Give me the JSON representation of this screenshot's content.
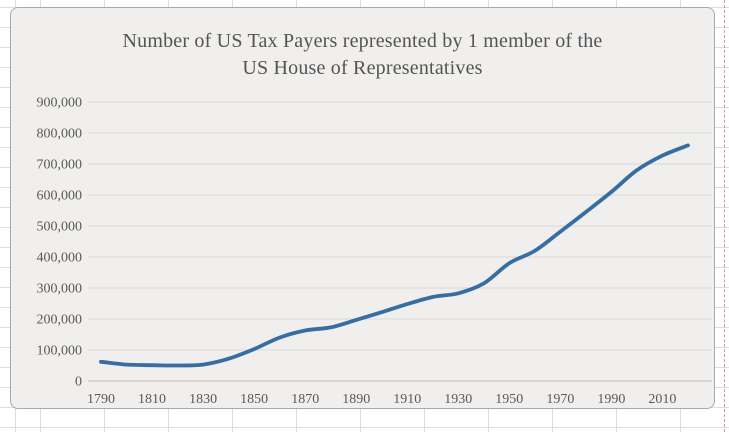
{
  "chart_data": {
    "type": "line",
    "title": "Number of US Tax Payers represented by 1 member of the US House of Representatives",
    "title_lines": [
      "Number of US Tax Payers represented by 1 member of the",
      "US House of Representatives"
    ],
    "x": [
      1790,
      1800,
      1810,
      1820,
      1830,
      1840,
      1850,
      1860,
      1870,
      1880,
      1890,
      1900,
      1910,
      1920,
      1930,
      1940,
      1950,
      1960,
      1970,
      1980,
      1990,
      2000,
      2010,
      2020
    ],
    "values": [
      62000,
      53000,
      51000,
      50000,
      53000,
      72000,
      103000,
      140000,
      163000,
      173000,
      197000,
      222000,
      248000,
      271000,
      283000,
      315000,
      380000,
      420000,
      482000,
      545000,
      610000,
      680000,
      727000,
      760000
    ],
    "x_tick_years": [
      1790,
      1810,
      1830,
      1850,
      1870,
      1890,
      1910,
      1930,
      1950,
      1970,
      1990,
      2010
    ],
    "x_tick_labels": [
      "1790",
      "1810",
      "1830",
      "1850",
      "1870",
      "1890",
      "1910",
      "1930",
      "1950",
      "1970",
      "1990",
      "2010"
    ],
    "y_ticks": [
      0,
      100000,
      200000,
      300000,
      400000,
      500000,
      600000,
      700000,
      800000,
      900000
    ],
    "y_tick_labels": [
      "0",
      "100,000",
      "200,000",
      "300,000",
      "400,000",
      "500,000",
      "600,000",
      "700,000",
      "800,000",
      "900,000"
    ],
    "ylim": [
      0,
      900000
    ],
    "xlim": [
      1790,
      2020
    ],
    "grid": "horizontal",
    "legend": "none",
    "smoothed": true,
    "line_color": "#366EA1",
    "background_color": "#F0EFED",
    "gridline_color": "#D9D9D9",
    "axis_line_color": "#BFBFBF",
    "text_color": "#595959"
  }
}
